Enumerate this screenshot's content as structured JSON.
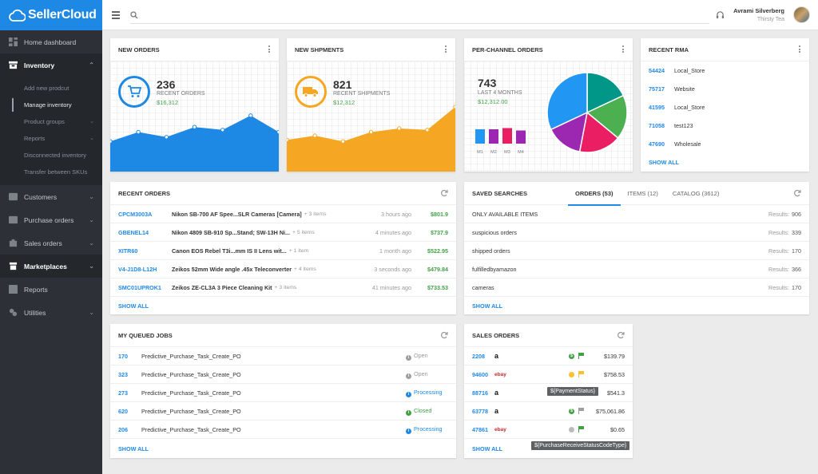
{
  "brand": {
    "name": "SellerCloud"
  },
  "sidebar": {
    "items": [
      {
        "label": "Home dashboard",
        "icon": "dashboard-icon"
      },
      {
        "label": "Inventory",
        "icon": "inventory-icon"
      },
      {
        "label": "Customers",
        "icon": "customers-icon"
      },
      {
        "label": "Purchase orders",
        "icon": "purchase-icon"
      },
      {
        "label": "Sales orders",
        "icon": "sales-icon"
      },
      {
        "label": "Marketplaces",
        "icon": "marketplaces-icon"
      },
      {
        "label": "Reports",
        "icon": "reports-icon"
      },
      {
        "label": "Utilities",
        "icon": "utilities-icon"
      }
    ],
    "inventory_sub": [
      "Add new prodcut",
      "Manage inventory",
      "Product groups",
      "Reports",
      "Disconnected inventory",
      "Transfer between SKUs"
    ]
  },
  "topbar": {
    "search_placeholder": "",
    "user_name": "Avrami Silverberg",
    "user_company": "Thirsty Tea"
  },
  "new_orders": {
    "title": "NEW ORDERS",
    "count": "236",
    "label": "RECENT ORDERS",
    "value": "$16,312",
    "chart": [
      0.42,
      0.55,
      0.48,
      0.62,
      0.58,
      0.78,
      0.55
    ],
    "color": "#1e88e5"
  },
  "new_shipments": {
    "title": "NEW SHPMENTS",
    "count": "821",
    "label": "RECENT SHIPMENTS",
    "value": "$12,312",
    "chart": [
      0.44,
      0.5,
      0.42,
      0.55,
      0.6,
      0.58,
      0.9
    ],
    "color": "#f5a623"
  },
  "per_channel": {
    "title": "PER-CHANNEL ORDERS",
    "count": "743",
    "label": "LAST 4 MONTHS",
    "value": "$12,312.00",
    "bars": [
      {
        "label": "M1",
        "value": 0.6,
        "color": "#2196f3"
      },
      {
        "label": "M2",
        "value": 0.6,
        "color": "#9c27b0"
      },
      {
        "label": "M3",
        "value": 0.65,
        "color": "#e91e63"
      },
      {
        "label": "M4",
        "value": 0.55,
        "color": "#9c27b0"
      }
    ],
    "pie": [
      {
        "value": 18,
        "color": "#009688"
      },
      {
        "value": 18,
        "color": "#4caf50"
      },
      {
        "value": 17,
        "color": "#e91e63"
      },
      {
        "value": 15,
        "color": "#9c27b0"
      },
      {
        "value": 32,
        "color": "#2196f3"
      }
    ]
  },
  "recent_rma": {
    "title": "RECENT RMA",
    "rows": [
      {
        "id": "54424",
        "name": "Local_Store"
      },
      {
        "id": "75717",
        "name": "Website"
      },
      {
        "id": "41595",
        "name": "Local_Store"
      },
      {
        "id": "71058",
        "name": "test123"
      },
      {
        "id": "47690",
        "name": "Wholesale"
      }
    ],
    "show_all": "SHOW ALL"
  },
  "recent_orders": {
    "title": "RECENT ORDERS",
    "rows": [
      {
        "id": "CPCM3003A",
        "desc": "Nikon SB-700 AF Spee...SLR Cameras [Camera]",
        "extra": "+ 3 items",
        "time": "3 hours ago",
        "amount": "$801.9"
      },
      {
        "id": "GBENEL14",
        "desc": "Nikon 4809 SB-910 Sp...Stand; SW-13H Ni...",
        "extra": "+ 5 items",
        "time": "4 minutes ago",
        "amount": "$737.9"
      },
      {
        "id": "XITR60",
        "desc": "Canon EOS Rebel T3i...mm IS II Lens wit...",
        "extra": "+ 1 item",
        "time": "1 month ago",
        "amount": "$522.95"
      },
      {
        "id": "V4-J1D8-L12H",
        "desc": "Zeikos 52mm Wide angle .45x Teleconverter",
        "extra": "+ 4 items",
        "time": "3 seconds ago",
        "amount": "$479.84"
      },
      {
        "id": "SMC01UPROK1",
        "desc": "Zeikos ZE-CL3A 3 Piece Cleaning Kit",
        "extra": "+ 3 items",
        "time": "41 minutes ago",
        "amount": "$733.53"
      }
    ],
    "show_all": "SHOW ALL"
  },
  "saved_searches": {
    "title": "SAVED SEARCHES",
    "tabs": [
      "ORDERS (53)",
      "ITEMS (12)",
      "CATALOG (3612)"
    ],
    "rows": [
      {
        "name": "ONLY AVAILABLE ITEMS",
        "results_label": "Results:",
        "results": "906"
      },
      {
        "name": "suspicious orders",
        "results_label": "Results:",
        "results": "339"
      },
      {
        "name": "shipped orders",
        "results_label": "Results:",
        "results": "170"
      },
      {
        "name": "fulfilledbyamazon",
        "results_label": "Results:",
        "results": "366"
      },
      {
        "name": "cameras",
        "results_label": "Results:",
        "results": "170"
      }
    ],
    "show_all": "SHOW ALL"
  },
  "queued_jobs": {
    "title": "MY QUEUED JOBS",
    "rows": [
      {
        "id": "170",
        "name": "Predictive_Purchase_Task_Create_PO",
        "status": "Open",
        "color": "#9e9e9e"
      },
      {
        "id": "323",
        "name": "Predictive_Purchase_Task_Create_PO",
        "status": "Open",
        "color": "#9e9e9e"
      },
      {
        "id": "273",
        "name": "Predictive_Purchase_Task_Create_PO",
        "status": "Processing",
        "color": "#1e88e5"
      },
      {
        "id": "620",
        "name": "Predictive_Purchase_Task_Create_PO",
        "status": "Closed",
        "color": "#43a047"
      },
      {
        "id": "206",
        "name": "Predictive_Purchase_Task_Create_PO",
        "status": "Processing",
        "color": "#1e88e5"
      }
    ],
    "show_all": "SHOW ALL"
  },
  "sales_orders": {
    "title": "SALES ORDERS",
    "rows": [
      {
        "id": "2208",
        "channel": "amazon",
        "amount": "$139.79",
        "pay": "green",
        "flag": "#43a047"
      },
      {
        "id": "94600",
        "channel": "ebay",
        "amount": "$758.53",
        "pay": "yellow",
        "flag": "#fbc02d"
      },
      {
        "id": "88716",
        "channel": "amazon",
        "amount": "$541.3",
        "pay": "",
        "flag": ""
      },
      {
        "id": "63778",
        "channel": "amazon",
        "amount": "$75,061.86",
        "pay": "green",
        "flag": "#9e9e9e"
      },
      {
        "id": "47861",
        "channel": "ebay",
        "amount": "$0.65",
        "pay": "gray",
        "flag": "#43a047"
      }
    ],
    "tooltip1": "${PaymentStatus}",
    "tooltip2": "${PurchaseReceiveStatusCodeType}",
    "show_all": "SHOW ALL"
  }
}
